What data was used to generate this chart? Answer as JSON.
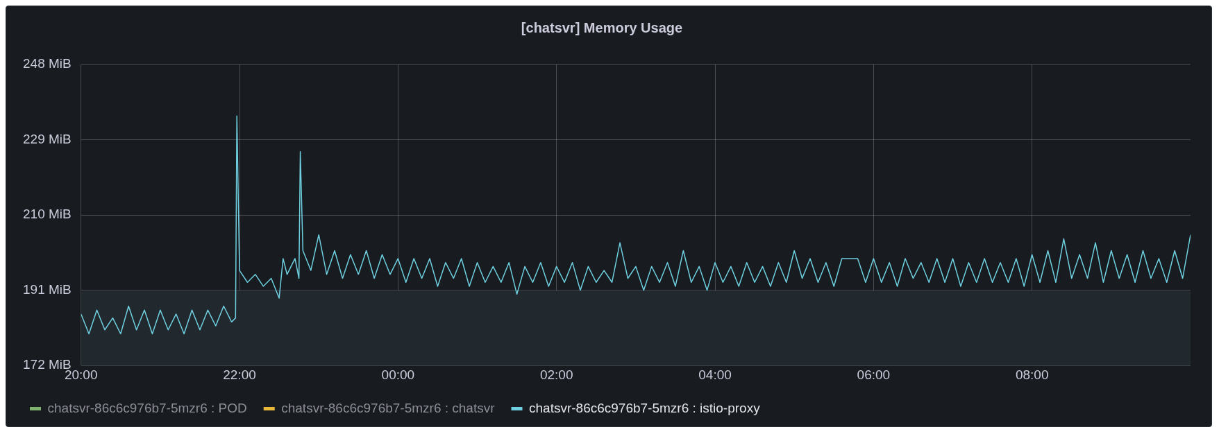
{
  "chart_data": {
    "type": "line",
    "title": "[chatsvr] Memory Usage",
    "x": [
      "--01-01T20:00",
      "--01-01T20:06",
      "--01-01T20:12",
      "--01-01T20:18",
      "--01-01T20:24",
      "--01-01T20:30",
      "--01-01T20:36",
      "--01-01T20:42",
      "--01-01T20:48",
      "--01-01T20:54",
      "--01-01T21:00",
      "--01-01T21:06",
      "--01-01T21:12",
      "--01-01T21:18",
      "--01-01T21:24",
      "--01-01T21:30",
      "--01-01T21:36",
      "--01-01T21:42",
      "--01-01T21:48",
      "--01-01T21:54",
      "--01-01T21:57",
      "--01-01T21:58",
      "--01-01T22:00",
      "--01-01T22:06",
      "--01-01T22:12",
      "--01-01T22:18",
      "--01-01T22:24",
      "--01-01T22:30",
      "--01-01T22:33",
      "--01-01T22:36",
      "--01-01T22:42",
      "--01-01T22:45",
      "--01-01T22:46",
      "--01-01T22:48",
      "--01-01T22:54",
      "--01-01T23:00",
      "--01-01T23:06",
      "--01-01T23:12",
      "--01-01T23:18",
      "--01-01T23:24",
      "--01-01T23:30",
      "--01-01T23:36",
      "--01-01T23:42",
      "--01-01T23:48",
      "--01-01T23:54",
      "--01-02T00:00",
      "--01-02T00:06",
      "--01-02T00:12",
      "--01-02T00:18",
      "--01-02T00:24",
      "--01-02T00:30",
      "--01-02T00:36",
      "--01-02T00:42",
      "--01-02T00:48",
      "--01-02T00:54",
      "--01-02T01:00",
      "--01-02T01:06",
      "--01-02T01:12",
      "--01-02T01:18",
      "--01-02T01:24",
      "--01-02T01:30",
      "--01-02T01:36",
      "--01-02T01:42",
      "--01-02T01:48",
      "--01-02T01:54",
      "--01-02T02:00",
      "--01-02T02:06",
      "--01-02T02:12",
      "--01-02T02:18",
      "--01-02T02:24",
      "--01-02T02:30",
      "--01-02T02:36",
      "--01-02T02:42",
      "--01-02T02:48",
      "--01-02T02:54",
      "--01-02T03:00",
      "--01-02T03:06",
      "--01-02T03:12",
      "--01-02T03:18",
      "--01-02T03:24",
      "--01-02T03:30",
      "--01-02T03:36",
      "--01-02T03:42",
      "--01-02T03:48",
      "--01-02T03:54",
      "--01-02T04:00",
      "--01-02T04:06",
      "--01-02T04:12",
      "--01-02T04:18",
      "--01-02T04:24",
      "--01-02T04:30",
      "--01-02T04:36",
      "--01-02T04:42",
      "--01-02T04:48",
      "--01-02T04:54",
      "--01-02T05:00",
      "--01-02T05:06",
      "--01-02T05:12",
      "--01-02T05:18",
      "--01-02T05:24",
      "--01-02T05:30",
      "--01-02T05:36",
      "--01-02T05:42",
      "--01-02T05:48",
      "--01-02T05:54",
      "--01-02T06:00",
      "--01-02T06:06",
      "--01-02T06:12",
      "--01-02T06:18",
      "--01-02T06:24",
      "--01-02T06:30",
      "--01-02T06:36",
      "--01-02T06:42",
      "--01-02T06:48",
      "--01-02T06:54",
      "--01-02T07:00",
      "--01-02T07:06",
      "--01-02T07:12",
      "--01-02T07:18",
      "--01-02T07:24",
      "--01-02T07:30",
      "--01-02T07:36",
      "--01-02T07:42",
      "--01-02T07:48",
      "--01-02T07:54",
      "--01-02T08:00",
      "--01-02T08:06",
      "--01-02T08:12",
      "--01-02T08:18",
      "--01-02T08:24",
      "--01-02T08:30",
      "--01-02T08:36",
      "--01-02T08:42",
      "--01-02T08:48",
      "--01-02T08:54",
      "--01-02T09:00",
      "--01-02T09:06",
      "--01-02T09:12",
      "--01-02T09:18",
      "--01-02T09:24",
      "--01-02T09:30",
      "--01-02T09:36",
      "--01-02T09:42",
      "--01-02T09:48",
      "--01-02T09:54",
      "--01-02T10:00"
    ],
    "series": [
      {
        "name": "chatsvr-86c6c976b7-5mzr6 : POD",
        "color": "#7eb26d",
        "values": [
          null,
          null,
          null,
          null,
          null,
          null,
          null,
          null,
          null,
          null,
          null,
          null,
          null,
          null,
          null,
          null,
          null,
          null,
          null,
          null,
          null,
          null,
          null,
          null,
          null,
          null,
          null,
          null,
          null,
          null,
          null,
          null,
          null,
          null,
          null,
          null,
          null,
          null,
          null,
          null,
          null,
          null,
          null,
          null,
          null,
          null,
          null,
          null,
          null,
          null,
          null,
          null,
          null,
          null,
          null,
          null,
          null,
          null,
          null,
          null,
          null,
          null,
          null,
          null,
          null,
          null,
          null,
          null,
          null,
          null,
          null,
          null,
          null,
          null,
          null,
          null,
          null,
          null,
          null,
          null,
          null,
          null,
          null,
          null,
          null,
          null,
          null,
          null,
          null,
          null,
          null,
          null,
          null,
          null,
          null,
          null,
          null,
          null,
          null,
          null,
          null,
          null,
          null,
          null,
          null,
          null,
          null,
          null,
          null,
          null,
          null,
          null,
          null,
          null,
          null,
          null,
          null,
          null,
          null,
          null,
          null,
          null,
          null,
          null,
          null,
          null,
          null,
          null,
          null,
          null,
          null,
          null,
          null,
          null,
          null,
          null,
          null,
          null,
          null,
          null,
          null,
          null,
          null,
          null,
          null,
          null
        ]
      },
      {
        "name": "chatsvr-86c6c976b7-5mzr6 : chatsvr",
        "color": "#eab839",
        "values": [
          null,
          null,
          null,
          null,
          null,
          null,
          null,
          null,
          null,
          null,
          null,
          null,
          null,
          null,
          null,
          null,
          null,
          null,
          null,
          null,
          null,
          null,
          null,
          null,
          null,
          null,
          null,
          null,
          null,
          null,
          null,
          null,
          null,
          null,
          null,
          null,
          null,
          null,
          null,
          null,
          null,
          null,
          null,
          null,
          null,
          null,
          null,
          null,
          null,
          null,
          null,
          null,
          null,
          null,
          null,
          null,
          null,
          null,
          null,
          null,
          null,
          null,
          null,
          null,
          null,
          null,
          null,
          null,
          null,
          null,
          null,
          null,
          null,
          null,
          null,
          null,
          null,
          null,
          null,
          null,
          null,
          null,
          null,
          null,
          null,
          null,
          null,
          null,
          null,
          null,
          null,
          null,
          null,
          null,
          null,
          null,
          null,
          null,
          null,
          null,
          null,
          null,
          null,
          null,
          null,
          null,
          null,
          null,
          null,
          null,
          null,
          null,
          null,
          null,
          null,
          null,
          null,
          null,
          null,
          null,
          null,
          null,
          null,
          null,
          null,
          null,
          null,
          null,
          null,
          null,
          null,
          null,
          null,
          null,
          null,
          null,
          null,
          null,
          null,
          null,
          null,
          null,
          null,
          null,
          null,
          null
        ]
      },
      {
        "name": "chatsvr-86c6c976b7-5mzr6 : istio-proxy",
        "color": "#6ed0e0",
        "values": [
          185,
          180,
          186,
          181,
          184,
          180,
          187,
          181,
          186,
          180,
          186,
          181,
          185,
          180,
          186,
          181,
          186,
          182,
          187,
          183,
          184,
          235,
          196,
          193,
          195,
          192,
          194,
          189,
          199,
          195,
          199,
          194,
          226,
          201,
          196,
          205,
          195,
          201,
          194,
          200,
          195,
          201,
          194,
          200,
          195,
          199,
          193,
          199,
          194,
          199,
          192,
          198,
          194,
          199,
          192,
          198,
          193,
          197,
          193,
          198,
          190,
          197,
          193,
          198,
          192,
          197,
          193,
          198,
          191,
          197,
          193,
          196,
          193,
          203,
          194,
          197,
          191,
          197,
          193,
          198,
          192,
          201,
          193,
          197,
          191,
          198,
          193,
          197,
          192,
          198,
          193,
          197,
          192,
          198,
          193,
          201,
          194,
          199,
          193,
          198,
          192,
          199,
          199,
          199,
          193,
          199,
          193,
          198,
          192,
          199,
          194,
          198,
          193,
          199,
          193,
          199,
          192,
          198,
          193,
          199,
          193,
          198,
          193,
          199,
          192,
          200,
          193,
          201,
          193,
          204,
          194,
          200,
          194,
          203,
          193,
          201,
          194,
          200,
          193,
          201,
          194,
          199,
          193,
          201,
          194,
          205
        ]
      }
    ],
    "xlim": [
      "--01-01T20:00",
      "--01-02T10:00"
    ],
    "xticks": [
      {
        "value": "--01-01T20:00",
        "label": "20:00"
      },
      {
        "value": "--01-01T22:00",
        "label": "22:00"
      },
      {
        "value": "--01-02T00:00",
        "label": "00:00"
      },
      {
        "value": "--01-02T02:00",
        "label": "02:00"
      },
      {
        "value": "--01-02T04:00",
        "label": "04:00"
      },
      {
        "value": "--01-02T06:00",
        "label": "06:00"
      },
      {
        "value": "--01-02T08:00",
        "label": "08:00"
      }
    ],
    "ylim": [
      172,
      248
    ],
    "yticks": [
      {
        "value": 172,
        "label": "172 MiB"
      },
      {
        "value": 191,
        "label": "191 MiB"
      },
      {
        "value": 210,
        "label": "210 MiB"
      },
      {
        "value": 229,
        "label": "229 MiB"
      },
      {
        "value": 248,
        "label": "248 MiB"
      }
    ],
    "bands": [
      {
        "axis": "y",
        "from": 172,
        "to": 191,
        "color": "#22292e"
      }
    ],
    "grid": true,
    "legend": "bottom",
    "marker": "none",
    "line_style": "solid"
  }
}
